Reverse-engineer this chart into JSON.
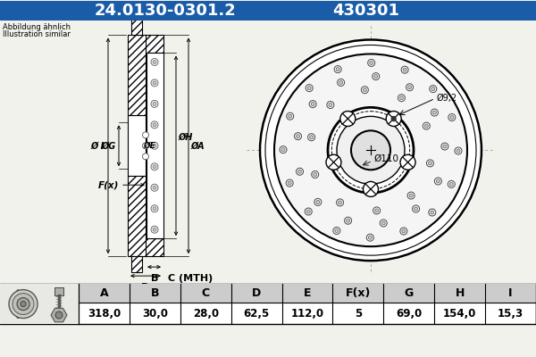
{
  "title_part": "24.0130-0301.2",
  "title_code": "430301",
  "title_bg": "#1a5ca8",
  "title_fg": "#ffffff",
  "subtitle_line1": "Abbildung ähnlich",
  "subtitle_line2": "Illustration similar",
  "table_headers": [
    "A",
    "B",
    "C",
    "D",
    "E",
    "F(x)",
    "G",
    "H",
    "I"
  ],
  "table_values": [
    "318,0",
    "30,0",
    "28,0",
    "62,5",
    "112,0",
    "5",
    "69,0",
    "154,0",
    "15,3"
  ],
  "annot_hole": "Ø9,2",
  "annot_center": "Ø110",
  "bg_color": "#f2f2ec",
  "header_bg": "#cccccc",
  "table_bg": "#ffffff",
  "line_color": "#000000",
  "blue_header": "#1a5ca8",
  "disc_bg": "#ffffff"
}
